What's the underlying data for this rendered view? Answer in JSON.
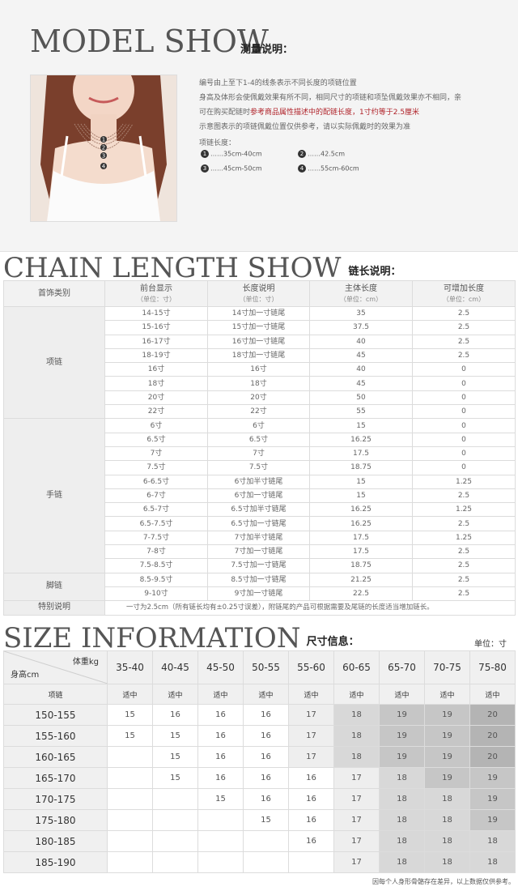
{
  "model": {
    "title": "MODEL SHOW",
    "subtitle": "测量说明：",
    "lines": [
      "编号由上至下1-4的线条表示不同长度的项链位置",
      "身高及体形会使佩戴效果有所不同，相同尺寸的项链和项坠佩戴效果亦不相同，亲",
      "示意图表示的项链佩戴位置仅供参考，请以实际佩戴时的效果为准"
    ],
    "line3_a": "可在购买配链时",
    "line3_b": "参考商品属性描述中的配链长度，1寸约等于2.5厘米",
    "length_label": "项链长度：",
    "lengths": [
      {
        "n": "1",
        "text": "……35cm-40cm"
      },
      {
        "n": "2",
        "text": "……42.5cm"
      },
      {
        "n": "3",
        "text": "……45cm-50cm"
      },
      {
        "n": "4",
        "text": "……55cm-60cm"
      }
    ],
    "photo_marks": [
      "1",
      "2",
      "3",
      "4"
    ]
  },
  "chain": {
    "title": "CHAIN LENGTH SHOW",
    "subtitle": "链长说明：",
    "headers": [
      {
        "t": "首饰类别",
        "u": ""
      },
      {
        "t": "前台显示",
        "u": "（单位：寸）"
      },
      {
        "t": "长度说明",
        "u": "（单位：寸）"
      },
      {
        "t": "主体长度",
        "u": "（单位：cm）"
      },
      {
        "t": "可增加长度",
        "u": "（单位：cm）"
      }
    ],
    "groups": [
      {
        "category": "项链",
        "rows": [
          [
            "14-15寸",
            "14寸加一寸链尾",
            "35",
            "2.5"
          ],
          [
            "15-16寸",
            "15寸加一寸链尾",
            "37.5",
            "2.5"
          ],
          [
            "16-17寸",
            "16寸加一寸链尾",
            "40",
            "2.5"
          ],
          [
            "18-19寸",
            "18寸加一寸链尾",
            "45",
            "2.5"
          ],
          [
            "16寸",
            "16寸",
            "40",
            "0"
          ],
          [
            "18寸",
            "18寸",
            "45",
            "0"
          ],
          [
            "20寸",
            "20寸",
            "50",
            "0"
          ],
          [
            "22寸",
            "22寸",
            "55",
            "0"
          ]
        ]
      },
      {
        "category": "手链",
        "rows": [
          [
            "6寸",
            "6寸",
            "15",
            "0"
          ],
          [
            "6.5寸",
            "6.5寸",
            "16.25",
            "0"
          ],
          [
            "7寸",
            "7寸",
            "17.5",
            "0"
          ],
          [
            "7.5寸",
            "7.5寸",
            "18.75",
            "0"
          ],
          [
            "6-6.5寸",
            "6寸加半寸链尾",
            "15",
            "1.25"
          ],
          [
            "6-7寸",
            "6寸加一寸链尾",
            "15",
            "2.5"
          ],
          [
            "6.5-7寸",
            "6.5寸加半寸链尾",
            "16.25",
            "1.25"
          ],
          [
            "6.5-7.5寸",
            "6.5寸加一寸链尾",
            "16.25",
            "2.5"
          ],
          [
            "7-7.5寸",
            "7寸加半寸链尾",
            "17.5",
            "1.25"
          ],
          [
            "7-8寸",
            "7寸加一寸链尾",
            "17.5",
            "2.5"
          ],
          [
            "7.5-8.5寸",
            "7.5寸加一寸链尾",
            "18.75",
            "2.5"
          ]
        ]
      },
      {
        "category": "脚链",
        "rows": [
          [
            "8.5-9.5寸",
            "8.5寸加一寸链尾",
            "21.25",
            "2.5"
          ],
          [
            "9-10寸",
            "9寸加一寸链尾",
            "22.5",
            "2.5"
          ]
        ]
      }
    ],
    "note_label": "特别说明",
    "note_text": "一寸为2.5cm（所有链长均有±0.25寸误差），附链尾的产品可根据需要及尾链的长度适当增加链长。"
  },
  "size": {
    "title": "SIZE INFORMATION",
    "subtitle": "尺寸信息：",
    "unit": "单位：寸",
    "weight_label": "体重kg",
    "height_label": "身高cm",
    "weights": [
      "35-40",
      "40-45",
      "45-50",
      "50-55",
      "55-60",
      "60-65",
      "65-70",
      "70-75",
      "75-80"
    ],
    "sub_label": "项链",
    "sub_values": [
      "适中",
      "适中",
      "适中",
      "适中",
      "适中",
      "适中",
      "适中",
      "适中",
      "适中"
    ],
    "rows": [
      {
        "h": "150-155",
        "v": [
          "15",
          "16",
          "16",
          "16",
          "17",
          "18",
          "19",
          "19",
          "20"
        ]
      },
      {
        "h": "155-160",
        "v": [
          "15",
          "15",
          "16",
          "16",
          "17",
          "18",
          "19",
          "19",
          "20"
        ]
      },
      {
        "h": "160-165",
        "v": [
          "",
          "15",
          "16",
          "16",
          "17",
          "18",
          "19",
          "19",
          "20"
        ]
      },
      {
        "h": "165-170",
        "v": [
          "",
          "15",
          "16",
          "16",
          "16",
          "17",
          "18",
          "19",
          "19"
        ]
      },
      {
        "h": "170-175",
        "v": [
          "",
          "",
          "15",
          "16",
          "16",
          "17",
          "18",
          "18",
          "19"
        ]
      },
      {
        "h": "175-180",
        "v": [
          "",
          "",
          "",
          "15",
          "16",
          "17",
          "18",
          "18",
          "19"
        ]
      },
      {
        "h": "180-185",
        "v": [
          "",
          "",
          "",
          "",
          "16",
          "17",
          "18",
          "18",
          "18"
        ]
      },
      {
        "h": "185-190",
        "v": [
          "",
          "",
          "",
          "",
          "",
          "17",
          "18",
          "18",
          "18"
        ]
      }
    ],
    "footnote": "因每个人身形骨骼存在差异，以上数据仅供参考。"
  },
  "colors": {
    "accent_red": "#b0232a",
    "header_gray": "#f0f0f0",
    "border": "#dcdcdc"
  }
}
